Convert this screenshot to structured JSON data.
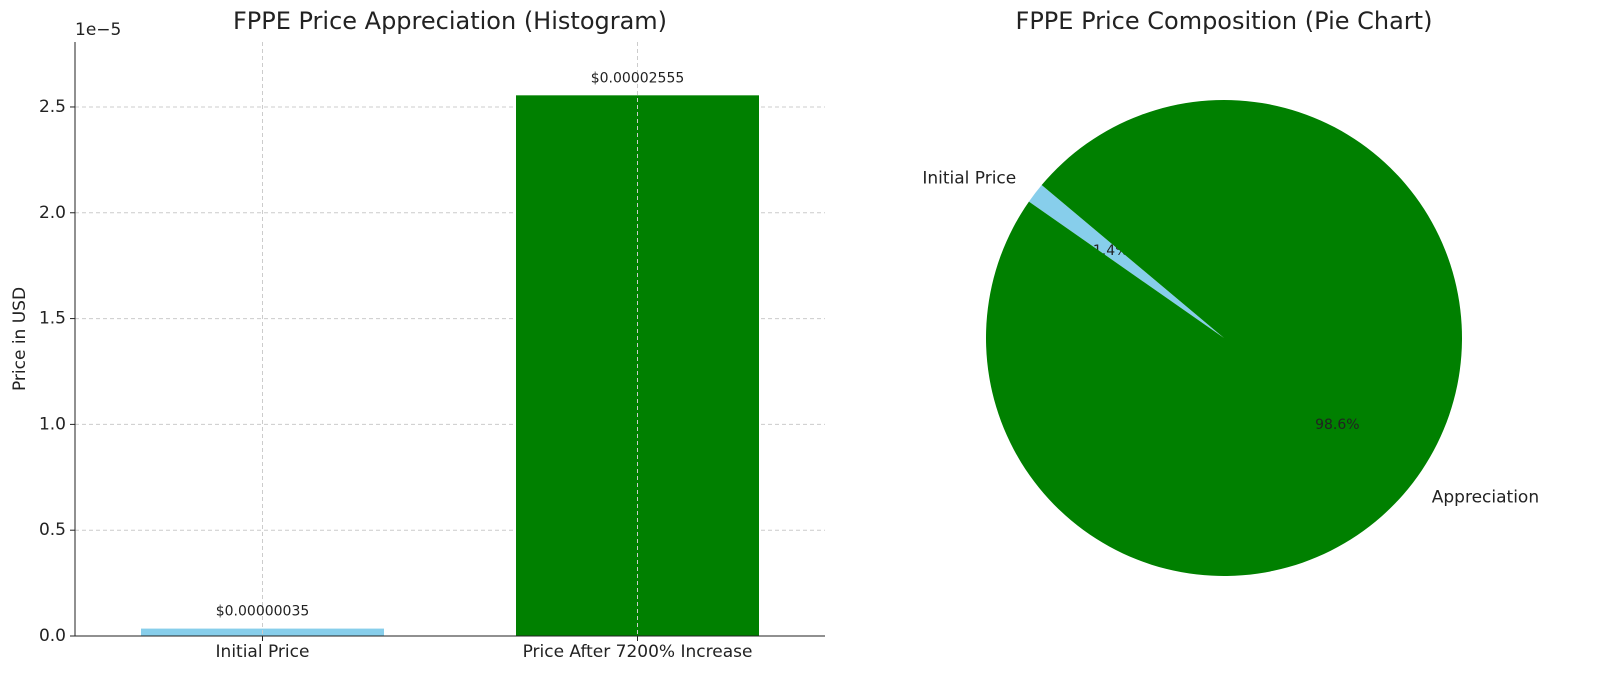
{
  "chart_data": [
    {
      "type": "bar",
      "title": "FPPE Price Appreciation (Histogram)",
      "y_label": "Price in USD",
      "y_offset_label": "1e−5",
      "categories": [
        "Initial Price",
        "Price After 7200% Increase"
      ],
      "values": [
        3.5e-07,
        2.555e-05
      ],
      "value_labels": [
        "$0.00000035",
        "$0.00002555"
      ],
      "colors": [
        "#87ceeb",
        "#008000"
      ],
      "ylim": [
        0,
        2.807e-05
      ],
      "yticks": [
        {
          "value": 0,
          "label": "0.0"
        },
        {
          "value": 5e-06,
          "label": "0.5"
        },
        {
          "value": 1e-05,
          "label": "1.0"
        },
        {
          "value": 1.5e-05,
          "label": "1.5"
        },
        {
          "value": 2e-05,
          "label": "2.0"
        },
        {
          "value": 2.5e-05,
          "label": "2.5"
        }
      ],
      "grid": true
    },
    {
      "type": "pie",
      "title": "FPPE Price Composition (Pie Chart)",
      "categories": [
        "Initial Price",
        "Appreciation"
      ],
      "values": [
        1.4,
        98.6
      ],
      "value_labels": [
        "1.4%",
        "98.6%"
      ],
      "colors": [
        "#87ceeb",
        "#008000"
      ],
      "startangle": 140
    }
  ]
}
